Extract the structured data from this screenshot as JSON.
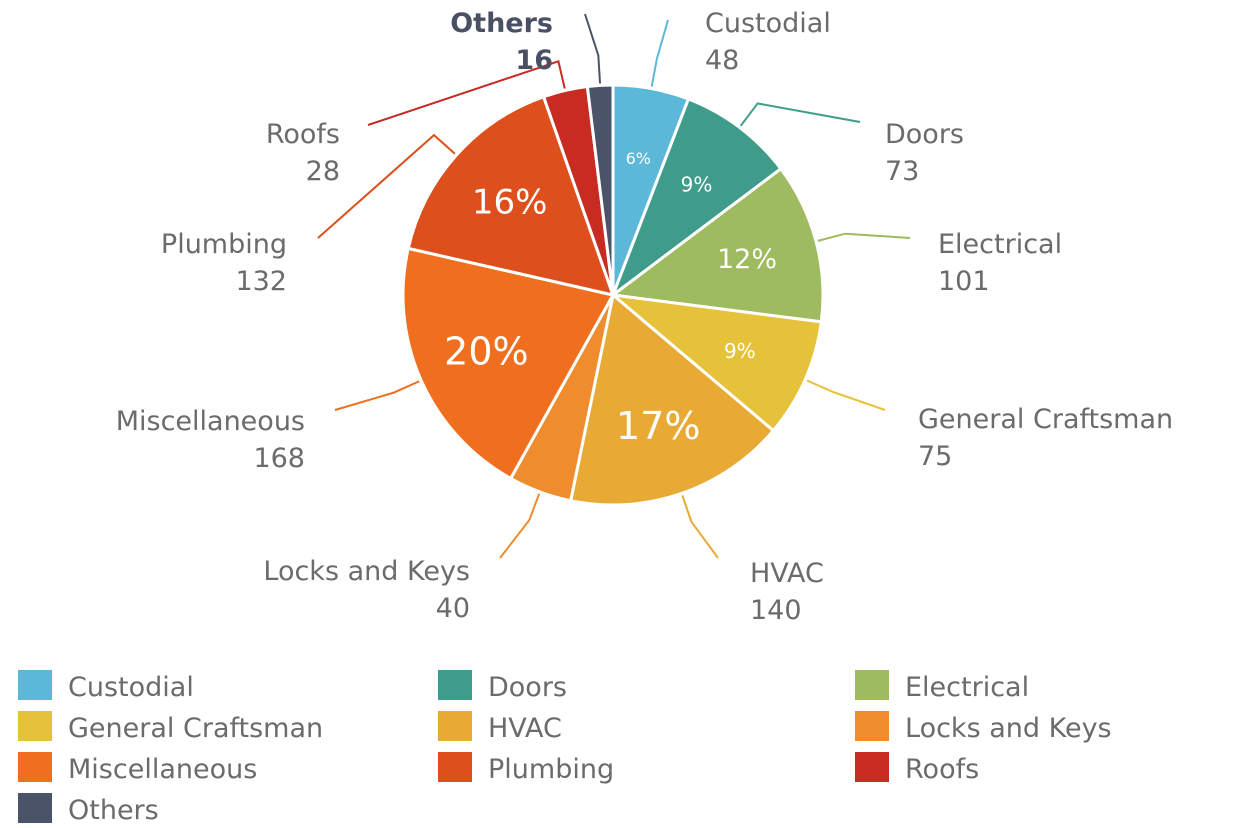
{
  "chart_data": {
    "type": "pie",
    "title": "",
    "legend_position": "bottom",
    "slices": [
      {
        "name": "Custodial",
        "value": 48,
        "percent_label": "6%",
        "color": "#5bb8d8"
      },
      {
        "name": "Doors",
        "value": 73,
        "percent_label": "9%",
        "color": "#3f9c8a"
      },
      {
        "name": "Electrical",
        "value": 101,
        "percent_label": "12%",
        "color": "#9ebb5f"
      },
      {
        "name": "General Craftsman",
        "value": 75,
        "percent_label": "9%",
        "color": "#e6c23a"
      },
      {
        "name": "HVAC",
        "value": 140,
        "percent_label": "17%",
        "color": "#e9a935"
      },
      {
        "name": "Locks and Keys",
        "value": 40,
        "percent_label": "",
        "color": "#ee8c2e"
      },
      {
        "name": "Miscellaneous",
        "value": 168,
        "percent_label": "20%",
        "color": "#ef6f1f"
      },
      {
        "name": "Plumbing",
        "value": 132,
        "percent_label": "16%",
        "color": "#dd4f1c"
      },
      {
        "name": "Roofs",
        "value": 28,
        "percent_label": "",
        "color": "#c72b22"
      },
      {
        "name": "Others",
        "value": 16,
        "percent_label": "",
        "color": "#4a5368"
      }
    ]
  }
}
